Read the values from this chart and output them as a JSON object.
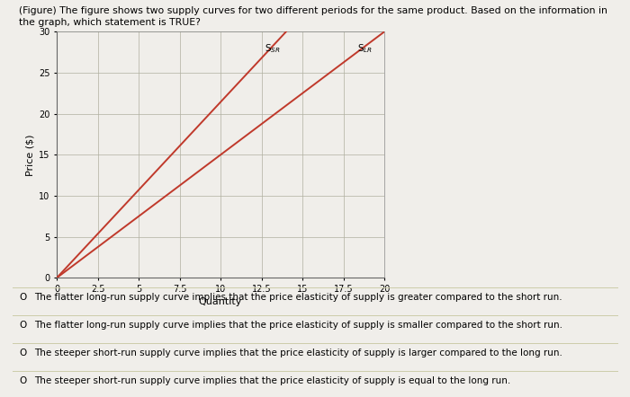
{
  "title_line1": "(Figure) The figure shows two supply curves for two different periods for the same product. Based on the information in",
  "title_line2": "the graph, which statement is TRUE?",
  "xlabel": "Quantity",
  "ylabel": "Price ($)",
  "xlim": [
    0,
    20
  ],
  "ylim": [
    0,
    30
  ],
  "xticks": [
    0,
    2.5,
    5,
    7.5,
    10,
    12.5,
    15,
    17.5,
    20
  ],
  "xtick_labels": [
    "0",
    "2.5",
    "5",
    "7.5",
    "10",
    "12.5",
    "15",
    "17.5",
    "20"
  ],
  "yticks": [
    0,
    5,
    10,
    15,
    20,
    25,
    30
  ],
  "ytick_labels": [
    "0",
    "5",
    "10",
    "15",
    "20",
    "25",
    "30"
  ],
  "sr_label": "S$_{SR}$",
  "lr_label": "S$_{LR}$",
  "sr_color": "#c0392b",
  "lr_color": "#c0392b",
  "sr_line": {
    "x": [
      0,
      14
    ],
    "y": [
      0,
      30
    ]
  },
  "lr_line": {
    "x": [
      0,
      20
    ],
    "y": [
      0,
      30
    ]
  },
  "bg_color": "#f0eeea",
  "chart_bg": "#f0eeea",
  "options": [
    "The flatter long-run supply curve implies that the price elasticity of supply is greater compared to the short run.",
    "The flatter long-run supply curve implies that the price elasticity of supply is smaller compared to the short run.",
    "The steeper short-run supply curve implies that the price elasticity of supply is larger compared to the long run.",
    "The steeper short-run supply curve implies that the price elasticity of supply is equal to the long run."
  ]
}
